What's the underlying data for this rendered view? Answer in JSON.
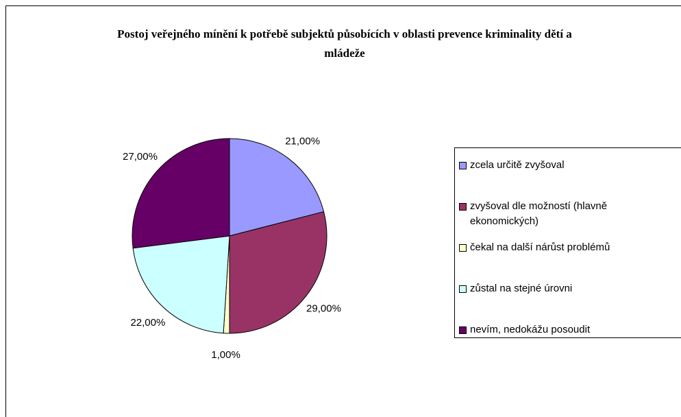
{
  "chart_data": {
    "type": "pie",
    "title": "Postoj veřejného mínění k potřebě subjektů působících v oblasti prevence kriminality dětí a mládeže",
    "categories": [
      "zcela určitě zvyšoval",
      "zvyšoval dle možností (hlavně ekonomických)",
      "čekal na další nárůst problémů",
      "zůstal na stejné úrovni",
      "nevím, nedokážu posoudit"
    ],
    "values": [
      21,
      29,
      1,
      22,
      27
    ],
    "value_labels": [
      "21,00%",
      "29,00%",
      "1,00%",
      "22,00%",
      "27,00%"
    ],
    "colors": [
      "#9999ff",
      "#993366",
      "#ffffcc",
      "#ccffff",
      "#660066"
    ],
    "legend": "right"
  }
}
